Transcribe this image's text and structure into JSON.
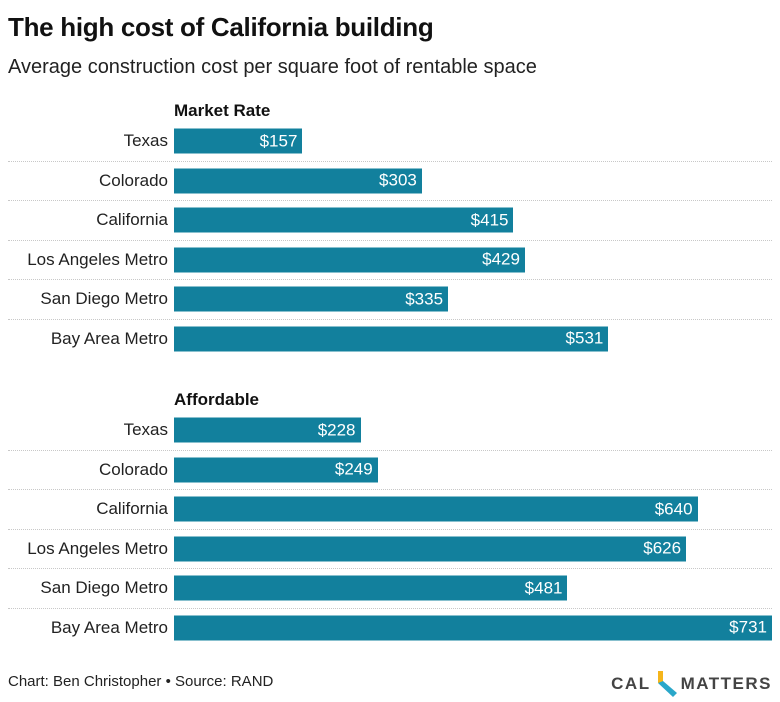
{
  "title": "The high cost of California building",
  "subtitle": "Average construction cost per square foot of rentable space",
  "footer": "Chart: Ben Christopher • Source: RAND",
  "logo": {
    "left": "CAL",
    "right": "MATTERS"
  },
  "chart_data": {
    "type": "bar",
    "orientation": "horizontal",
    "bar_color": "#12809d",
    "xlim": [
      0,
      731
    ],
    "groups": [
      {
        "name": "Market Rate",
        "categories": [
          "Texas",
          "Colorado",
          "California",
          "Los Angeles Metro",
          "San Diego Metro",
          "Bay Area Metro"
        ],
        "values": [
          157,
          303,
          415,
          429,
          335,
          531
        ],
        "labels": [
          "$157",
          "$303",
          "$415",
          "$429",
          "$335",
          "$531"
        ]
      },
      {
        "name": "Affordable",
        "categories": [
          "Texas",
          "Colorado",
          "California",
          "Los Angeles Metro",
          "San Diego Metro",
          "Bay Area Metro"
        ],
        "values": [
          228,
          249,
          640,
          626,
          481,
          731
        ],
        "labels": [
          "$228",
          "$249",
          "$640",
          "$626",
          "$481",
          "$731"
        ]
      }
    ]
  }
}
